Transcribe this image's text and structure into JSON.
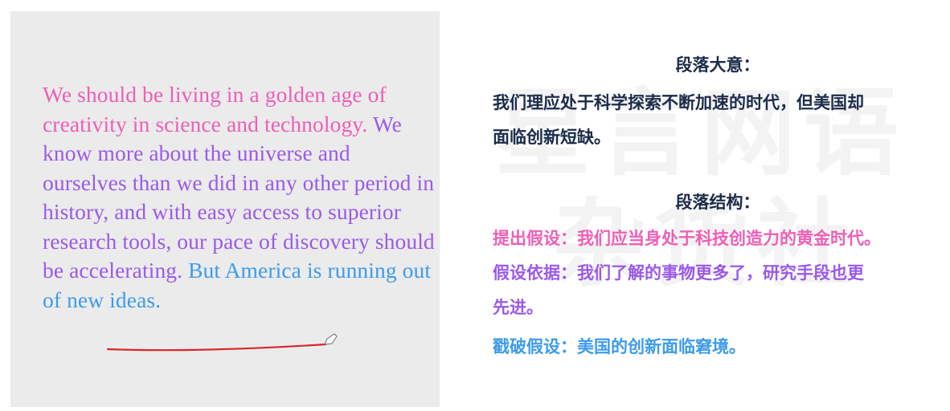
{
  "passage": {
    "pink_text": "We should be living in a golden age of creativity in science and technology.",
    "purple_text": "We know more about the universe and ourselves than we did in any other period in history, and with easy access to superior research tools, our pace of discovery should be accelerating.",
    "blue_text": "But America is running out of new ideas."
  },
  "summary": {
    "main_idea_heading": "段落大意：",
    "main_idea_line1": "我们理应处于科学探索不断加速的时代，但美国却",
    "main_idea_line2": "面临创新短缺。",
    "structure_heading": "段落结构：",
    "hypothesis": "提出假设：我们应当身处于科技创造力的黄金时代。",
    "evidence_line1": "假设依据：我们了解的事物更多了，研究手段也更",
    "evidence_line2": "先进。",
    "break": "戳破假设：美国的创新面临窘境。"
  },
  "watermark": {
    "line1": "星言网语",
    "line2": "杂货社"
  },
  "colors": {
    "pink": "#ee5fb6",
    "purple": "#9a5ae8",
    "blue": "#3d9bea",
    "navy": "#1c2b4a",
    "underline": "#d9262a"
  }
}
